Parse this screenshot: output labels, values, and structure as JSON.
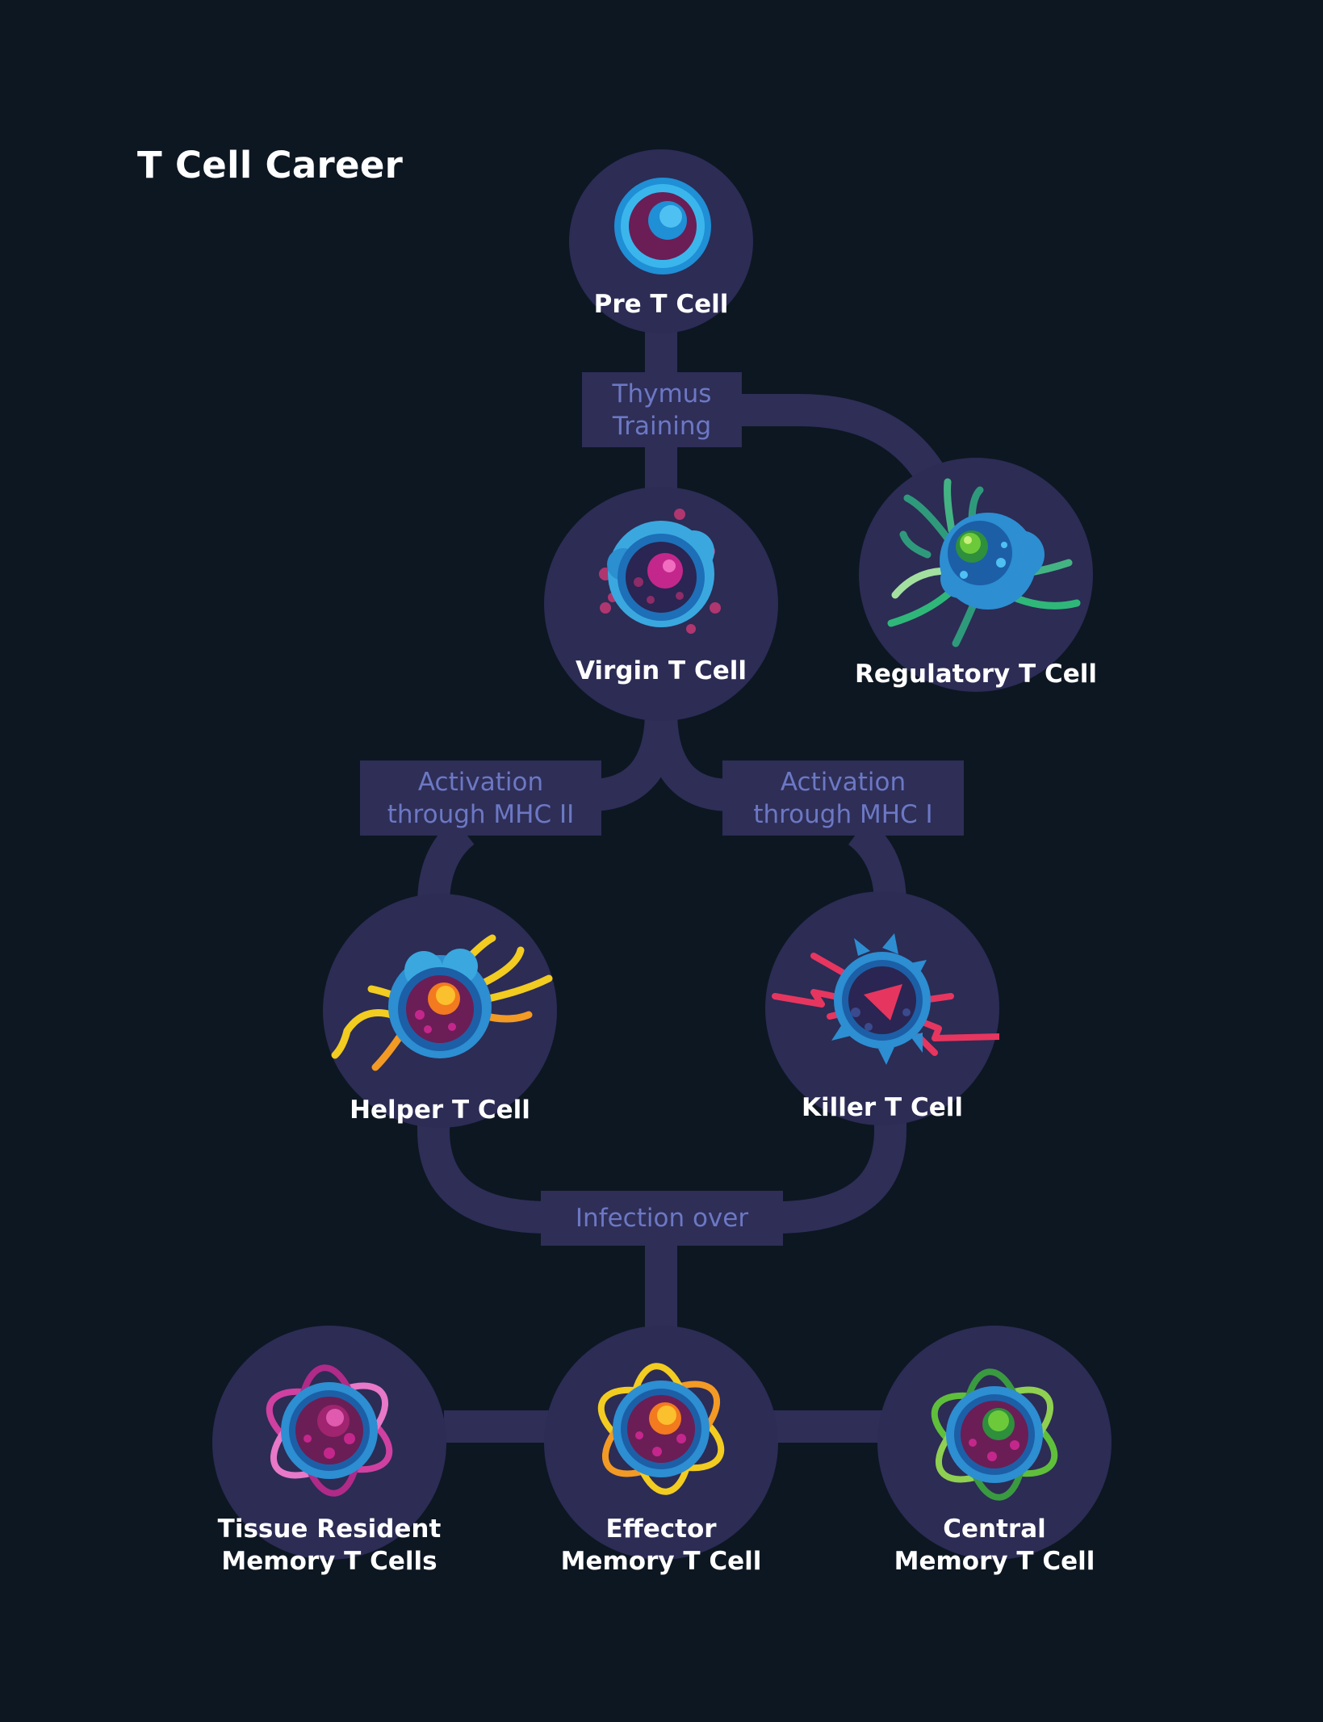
{
  "title": "T Cell Career",
  "colors": {
    "background": "#0d1722",
    "node_fill": "#2c2c55",
    "connector": "#2e2e57",
    "step_text": "#6c78c4",
    "label_text": "#ffffff"
  },
  "nodes": {
    "pre_t_cell": {
      "label": "Pre T Cell",
      "icon": "pre-t-cell-icon"
    },
    "virgin_t_cell": {
      "label": "Virgin T Cell",
      "icon": "virgin-t-cell-icon"
    },
    "regulatory_t_cell": {
      "label": "Regulatory T Cell",
      "icon": "regulatory-t-cell-icon"
    },
    "helper_t_cell": {
      "label": "Helper T Cell",
      "icon": "helper-t-cell-icon"
    },
    "killer_t_cell": {
      "label": "Killer T Cell",
      "icon": "killer-t-cell-icon"
    },
    "tissue_resident": {
      "label": "Tissue Resident\nMemory T Cells",
      "icon": "tissue-resident-memory-t-cell-icon"
    },
    "effector_memory": {
      "label": "Effector\nMemory T Cell",
      "icon": "effector-memory-t-cell-icon"
    },
    "central_memory": {
      "label": "Central\nMemory T Cell",
      "icon": "central-memory-t-cell-icon"
    }
  },
  "steps": {
    "thymus_training": "Thymus\nTraining",
    "activation_mhc2": "Activation\nthrough MHC II",
    "activation_mhc1": "Activation\nthrough MHC I",
    "infection_over": "Infection over"
  }
}
